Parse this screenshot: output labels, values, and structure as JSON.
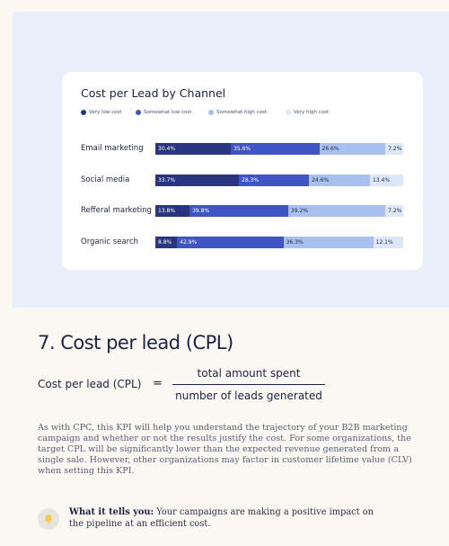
{
  "chart_data": {
    "type": "bar",
    "stacked": true,
    "orientation": "horizontal",
    "title": "Cost per Lead by Channel",
    "legend_position": "top-left",
    "categories": [
      "Email marketing",
      "Social media",
      "Refferal marketing",
      "Organic search"
    ],
    "series": [
      {
        "name": "Very low cost",
        "color": "#2a3582",
        "text_color": "#ffffff",
        "values": [
          30.4,
          33.7,
          13.8,
          8.8
        ],
        "labels": [
          "30.4%",
          "33.7%",
          "13.8%",
          "8.8%"
        ]
      },
      {
        "name": "Somewhat low cost",
        "color": "#3f55c4",
        "text_color": "#ffffff",
        "values": [
          35.6,
          28.3,
          39.8,
          42.9
        ],
        "labels": [
          "35.6%",
          "28.3%",
          "39.8%",
          "42.9%"
        ]
      },
      {
        "name": "Somewhat high cost",
        "color": "#a9c0ee",
        "text_color": "#1c2244",
        "values": [
          26.6,
          24.6,
          39.2,
          36.3
        ],
        "labels": [
          "26.6%",
          "24.6%",
          "39.2%",
          "36.3%"
        ]
      },
      {
        "name": "Very high cost",
        "color": "#dde7f8",
        "text_color": "#1c2244",
        "values": [
          7.2,
          13.4,
          7.2,
          12.1
        ],
        "labels": [
          "7.2%",
          "13.4%",
          "7.2%",
          "12.1%"
        ]
      }
    ]
  },
  "article": {
    "heading": "7. Cost per lead (CPL)",
    "formula": {
      "lhs": "Cost per lead (CPL)",
      "equals": "=",
      "numerator": "total amount spent",
      "denominator": "number of leads generated"
    },
    "paragraph": "As with CPC, this KPI will help you understand the trajectory of your B2B marketing campaign and whether or not the results justify the cost. For some organizations, the target CPL will be significantly lower than the expected revenue generated from a single sale. However, other organizations may factor in customer lifetime value (CLV) when setting this KPI.",
    "tip": {
      "label": "What it tells you:",
      "text": " Your campaigns are making a positive impact on the pipeline at an efficient cost."
    }
  },
  "colors": {
    "page_bg": "#fbf8f3",
    "hero_bg": "#e9eefb",
    "text_dark": "#1c2244",
    "body_text": "#575d76"
  },
  "icons": {
    "tip": "bell-icon"
  }
}
